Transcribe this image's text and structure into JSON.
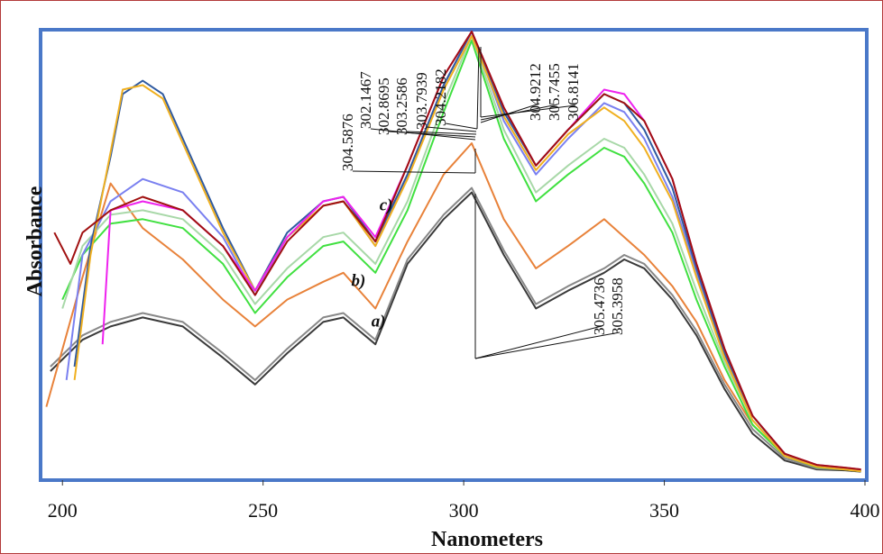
{
  "chart_data": {
    "type": "line",
    "xlabel": "Nanometers",
    "ylabel": "Absorbance",
    "xlim": [
      195,
      400
    ],
    "ylim": [
      0,
      1.0
    ],
    "x_ticks": [
      "200",
      "250",
      "300",
      "350",
      "400"
    ],
    "x_tick_values": [
      200,
      250,
      300,
      350,
      400
    ],
    "grid": false,
    "curve_labels": [
      {
        "text": "a)",
        "x": 277,
        "y": 0.34
      },
      {
        "text": "b)",
        "x": 272,
        "y": 0.43
      },
      {
        "text": "c)",
        "x": 279,
        "y": 0.6
      }
    ],
    "peak_labels_upper_left": [
      "304.5876",
      "302.1467",
      "302.8695",
      "303.2586",
      "303.7939",
      "304.2182"
    ],
    "peak_labels_upper_right": [
      "304.9212",
      "305.7455",
      "306.8141"
    ],
    "peak_labels_lower": [
      "305.4736",
      "305.3958"
    ],
    "series": [
      {
        "color": "#3a3a3a",
        "x": [
          197,
          205,
          212,
          220,
          230,
          240,
          248,
          256,
          265,
          270,
          278,
          286,
          295,
          302,
          310,
          318,
          326,
          335,
          340,
          345,
          352,
          358,
          365,
          372,
          380,
          388,
          395,
          399
        ],
        "y": [
          0.24,
          0.31,
          0.34,
          0.36,
          0.34,
          0.27,
          0.21,
          0.28,
          0.35,
          0.36,
          0.3,
          0.48,
          0.58,
          0.64,
          0.5,
          0.38,
          0.42,
          0.46,
          0.49,
          0.47,
          0.4,
          0.32,
          0.2,
          0.1,
          0.04,
          0.02,
          0.018,
          0.015
        ]
      },
      {
        "color": "#888888",
        "x": [
          197,
          205,
          212,
          220,
          230,
          240,
          248,
          256,
          265,
          270,
          278,
          286,
          295,
          302,
          310,
          318,
          326,
          335,
          340,
          345,
          352,
          358,
          365,
          372,
          380,
          388,
          395,
          399
        ],
        "y": [
          0.25,
          0.32,
          0.35,
          0.37,
          0.35,
          0.28,
          0.22,
          0.29,
          0.36,
          0.37,
          0.31,
          0.49,
          0.59,
          0.65,
          0.51,
          0.39,
          0.43,
          0.47,
          0.5,
          0.48,
          0.41,
          0.33,
          0.21,
          0.11,
          0.045,
          0.022,
          0.02,
          0.016
        ]
      },
      {
        "color": "#e8823a",
        "x": [
          196,
          205,
          212,
          220,
          230,
          240,
          248,
          256,
          265,
          270,
          278,
          286,
          295,
          302,
          310,
          318,
          326,
          335,
          340,
          345,
          352,
          358,
          365,
          372,
          380,
          388,
          395,
          399
        ],
        "y": [
          0.16,
          0.45,
          0.66,
          0.56,
          0.49,
          0.4,
          0.34,
          0.4,
          0.44,
          0.46,
          0.38,
          0.53,
          0.68,
          0.75,
          0.58,
          0.47,
          0.52,
          0.58,
          0.54,
          0.5,
          0.43,
          0.35,
          0.22,
          0.12,
          0.05,
          0.025,
          0.02,
          0.016
        ]
      },
      {
        "color": "#40e040",
        "x": [
          200,
          205,
          212,
          220,
          230,
          240,
          248,
          256,
          265,
          270,
          278,
          286,
          295,
          302,
          310,
          318,
          326,
          335,
          340,
          345,
          352,
          358,
          365,
          372,
          380,
          388,
          395,
          399
        ],
        "y": [
          0.4,
          0.5,
          0.57,
          0.58,
          0.56,
          0.48,
          0.37,
          0.45,
          0.52,
          0.53,
          0.46,
          0.6,
          0.82,
          0.98,
          0.76,
          0.62,
          0.68,
          0.74,
          0.72,
          0.66,
          0.55,
          0.4,
          0.25,
          0.12,
          0.05,
          0.025,
          0.02,
          0.016
        ]
      },
      {
        "color": "#a8d8a8",
        "x": [
          200,
          205,
          212,
          220,
          230,
          240,
          248,
          256,
          265,
          270,
          278,
          286,
          295,
          302,
          310,
          318,
          326,
          335,
          340,
          345,
          352,
          358,
          365,
          372,
          380,
          388,
          395,
          399
        ],
        "y": [
          0.38,
          0.52,
          0.59,
          0.6,
          0.58,
          0.5,
          0.39,
          0.47,
          0.54,
          0.55,
          0.48,
          0.62,
          0.84,
          0.99,
          0.78,
          0.64,
          0.7,
          0.76,
          0.74,
          0.68,
          0.57,
          0.42,
          0.26,
          0.13,
          0.055,
          0.028,
          0.021,
          0.017
        ]
      },
      {
        "color": "#7a80f0",
        "x": [
          201,
          205,
          212,
          220,
          230,
          240,
          248,
          256,
          265,
          270,
          278,
          286,
          295,
          302,
          310,
          318,
          326,
          335,
          340,
          345,
          352,
          358,
          365,
          372,
          380,
          388,
          395,
          399
        ],
        "y": [
          0.22,
          0.5,
          0.62,
          0.67,
          0.64,
          0.54,
          0.41,
          0.54,
          0.61,
          0.62,
          0.52,
          0.68,
          0.88,
          1.0,
          0.8,
          0.68,
          0.76,
          0.84,
          0.82,
          0.76,
          0.63,
          0.46,
          0.28,
          0.14,
          0.055,
          0.028,
          0.022,
          0.018
        ]
      },
      {
        "color": "#2f5aa0",
        "x": [
          203,
          207,
          212,
          215,
          220,
          225,
          230,
          240,
          248,
          256,
          265,
          270,
          278,
          286,
          295,
          302,
          310,
          318,
          326,
          335,
          340,
          345,
          352,
          358,
          365,
          372,
          380,
          388,
          395,
          399
        ],
        "y": [
          0.25,
          0.52,
          0.72,
          0.86,
          0.89,
          0.86,
          0.76,
          0.56,
          0.42,
          0.55,
          0.62,
          0.63,
          0.53,
          0.68,
          0.88,
          1.0,
          0.82,
          0.7,
          0.78,
          0.86,
          0.84,
          0.78,
          0.65,
          0.47,
          0.28,
          0.14,
          0.055,
          0.028,
          0.022,
          0.018
        ]
      },
      {
        "color": "#f0b020",
        "x": [
          203,
          207,
          212,
          215,
          220,
          225,
          230,
          240,
          248,
          256,
          265,
          270,
          278,
          286,
          295,
          302,
          310,
          318,
          326,
          335,
          340,
          345,
          352,
          358,
          365,
          372,
          380,
          388,
          395,
          399
        ],
        "y": [
          0.22,
          0.5,
          0.73,
          0.87,
          0.88,
          0.85,
          0.75,
          0.55,
          0.42,
          0.54,
          0.61,
          0.62,
          0.52,
          0.67,
          0.87,
          0.99,
          0.81,
          0.69,
          0.77,
          0.83,
          0.8,
          0.74,
          0.62,
          0.45,
          0.27,
          0.13,
          0.05,
          0.026,
          0.02,
          0.016
        ]
      },
      {
        "color": "#ee22ee",
        "x": [
          210,
          212,
          220,
          230,
          240,
          248,
          256,
          265,
          270,
          278,
          286,
          295,
          302,
          310,
          318,
          326,
          335,
          340,
          345,
          352,
          358,
          365,
          372,
          380,
          388,
          395,
          399
        ],
        "y": [
          0.3,
          0.6,
          0.62,
          0.6,
          0.52,
          0.42,
          0.54,
          0.62,
          0.63,
          0.54,
          0.7,
          0.9,
          1.0,
          0.83,
          0.7,
          0.78,
          0.87,
          0.86,
          0.8,
          0.67,
          0.48,
          0.29,
          0.14,
          0.055,
          0.03,
          0.024,
          0.02
        ]
      },
      {
        "color": "#a01010",
        "x": [
          198,
          202,
          205,
          212,
          220,
          230,
          240,
          248,
          256,
          265,
          270,
          278,
          286,
          295,
          302,
          310,
          318,
          326,
          335,
          340,
          345,
          352,
          358,
          365,
          372,
          380,
          388,
          395,
          399
        ],
        "y": [
          0.55,
          0.48,
          0.55,
          0.6,
          0.63,
          0.6,
          0.52,
          0.41,
          0.53,
          0.61,
          0.62,
          0.53,
          0.7,
          0.9,
          1.0,
          0.83,
          0.7,
          0.78,
          0.86,
          0.84,
          0.8,
          0.67,
          0.48,
          0.29,
          0.14,
          0.055,
          0.03,
          0.024,
          0.02
        ]
      }
    ]
  }
}
